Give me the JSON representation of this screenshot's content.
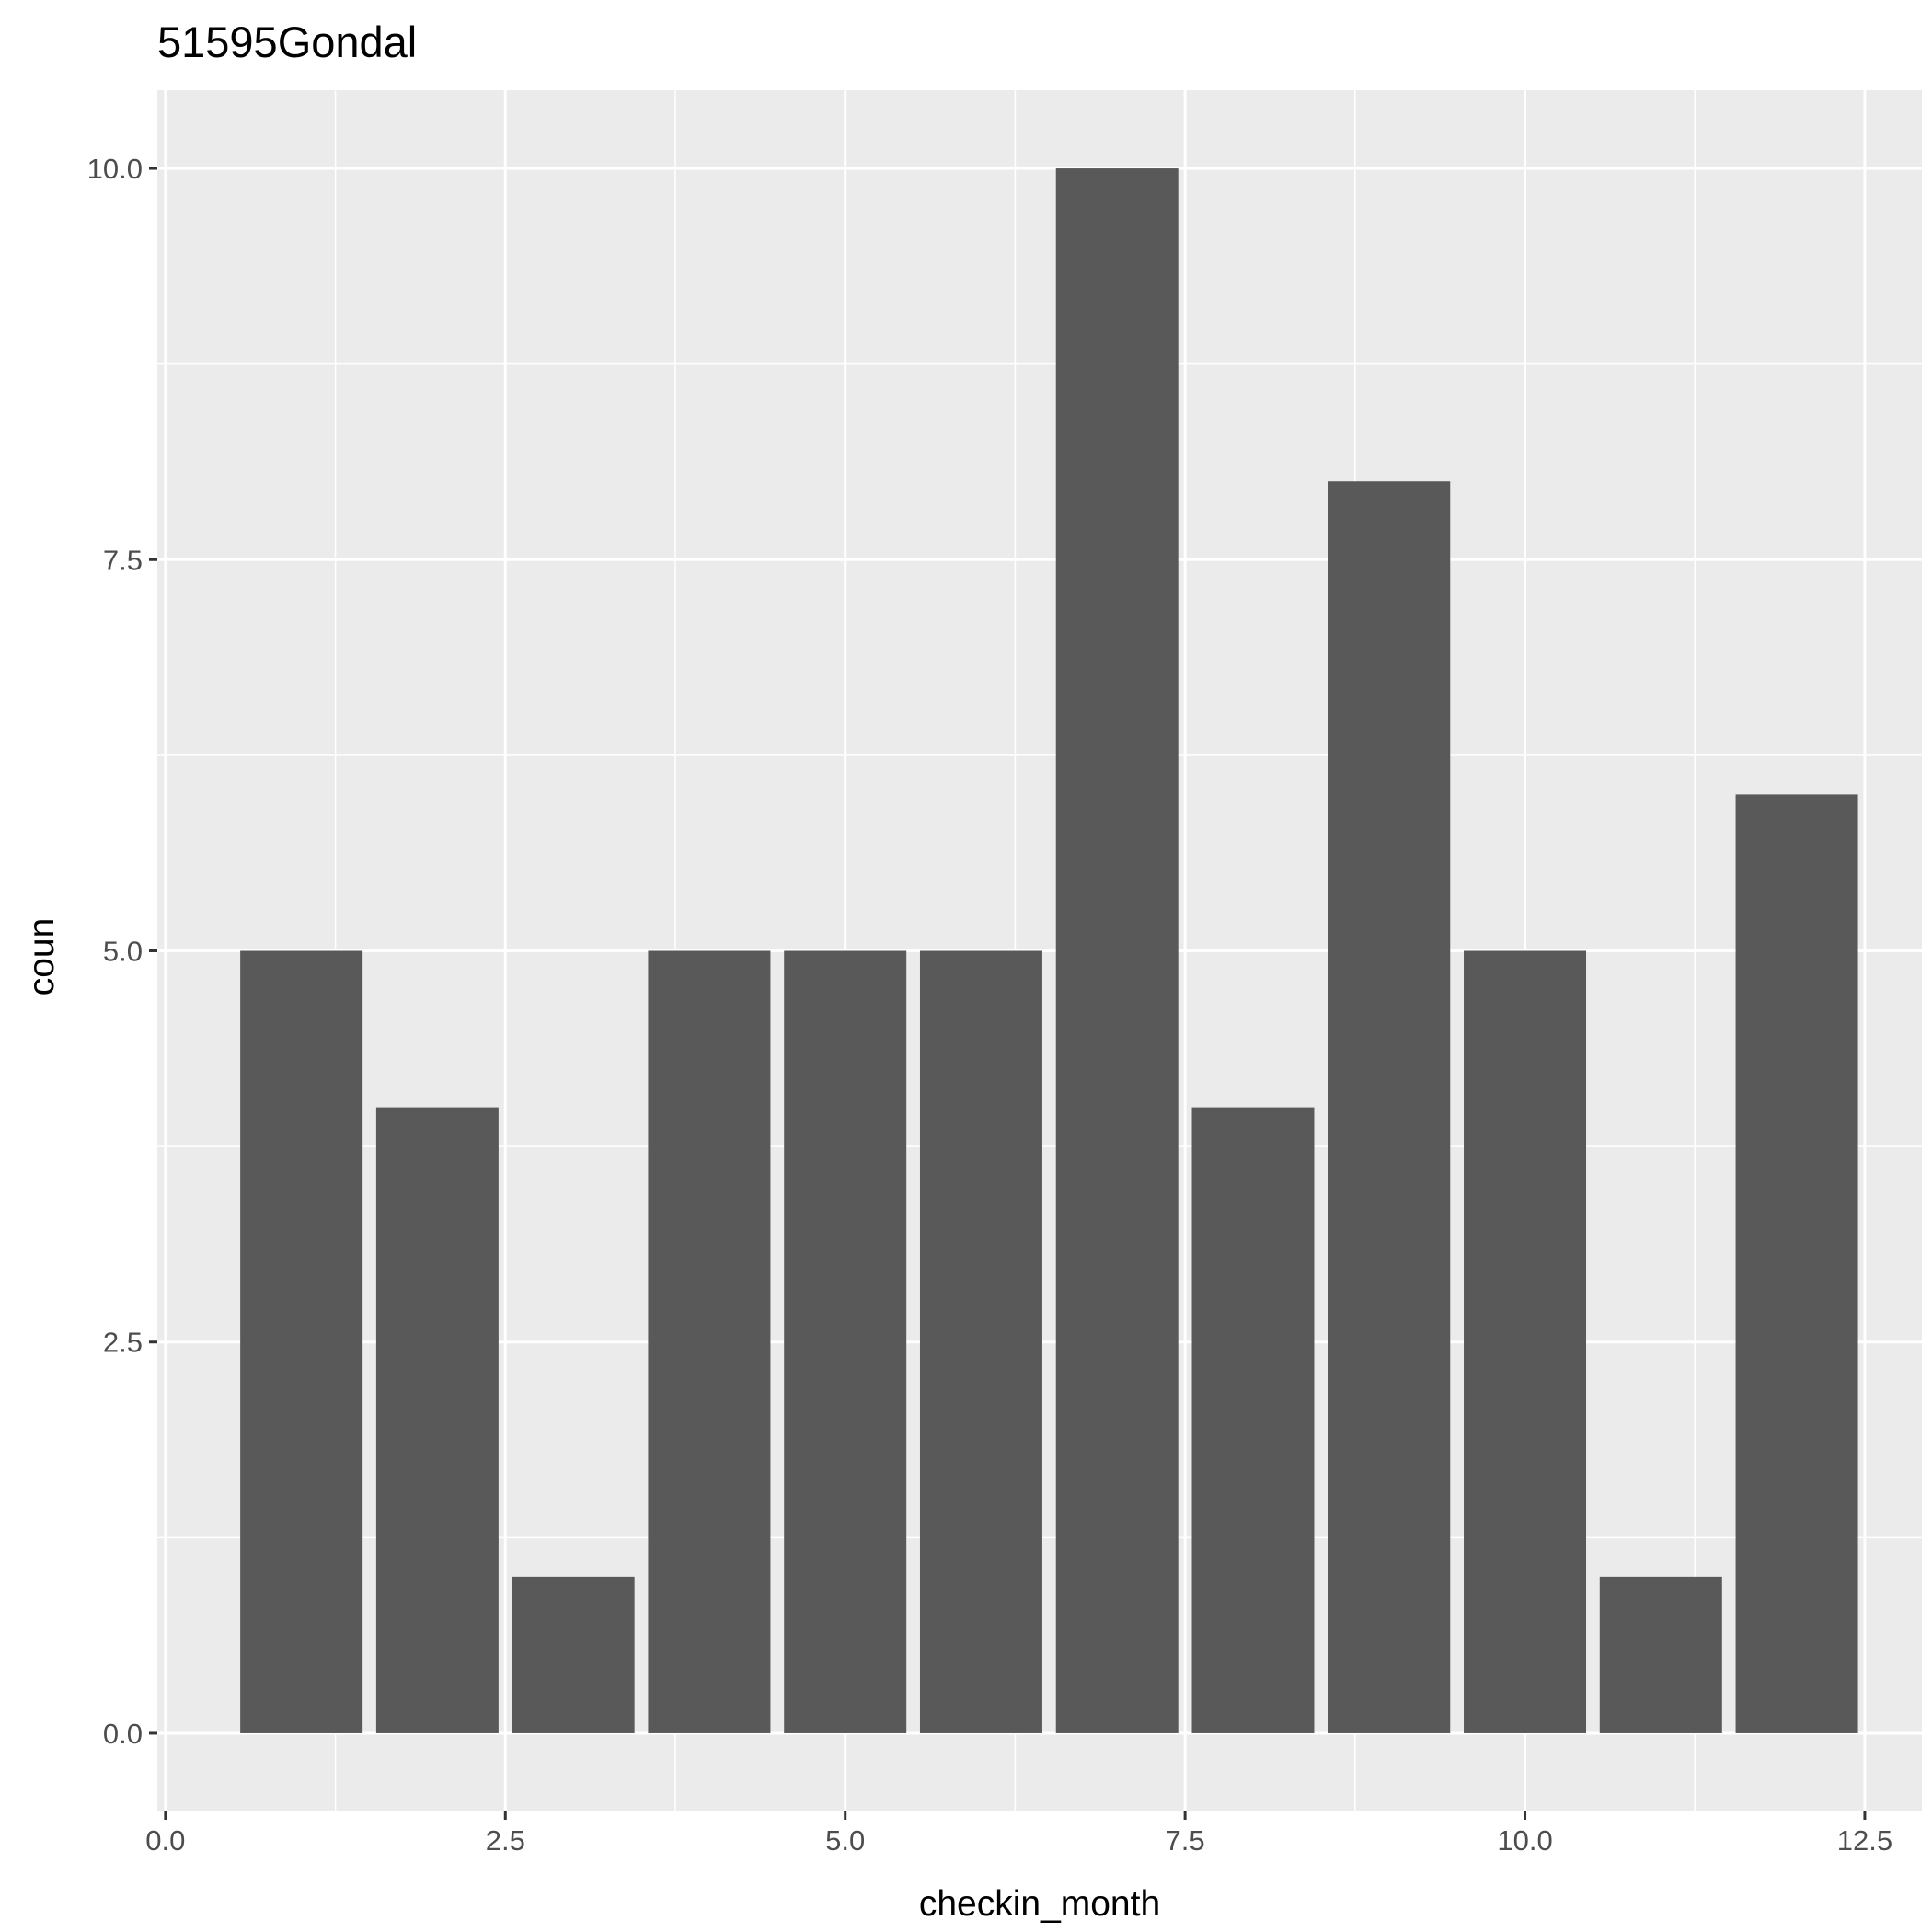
{
  "chart_data": {
    "type": "bar",
    "title": "51595Gondal",
    "xlabel": "checkin_month",
    "ylabel": "coun",
    "x": [
      1,
      2,
      3,
      4,
      5,
      6,
      7,
      8,
      9,
      10,
      11,
      12
    ],
    "values": [
      5,
      4,
      1,
      5,
      5,
      5,
      10,
      4,
      8,
      5,
      1,
      6
    ],
    "xlim": [
      0,
      12.5
    ],
    "ylim": [
      0,
      10
    ],
    "xticks": [
      "0.0",
      "2.5",
      "5.0",
      "7.5",
      "10.0",
      "12.5"
    ],
    "yticks": [
      "0.0",
      "2.5",
      "5.0",
      "7.5",
      "10.0"
    ],
    "grid": true,
    "legend": "none",
    "colors": {
      "panel_background": "#ebebeb",
      "grid": "#ffffff",
      "bar_fill": "#595959",
      "tick_text": "#4d4d4d",
      "tick_mark": "#333333"
    }
  }
}
